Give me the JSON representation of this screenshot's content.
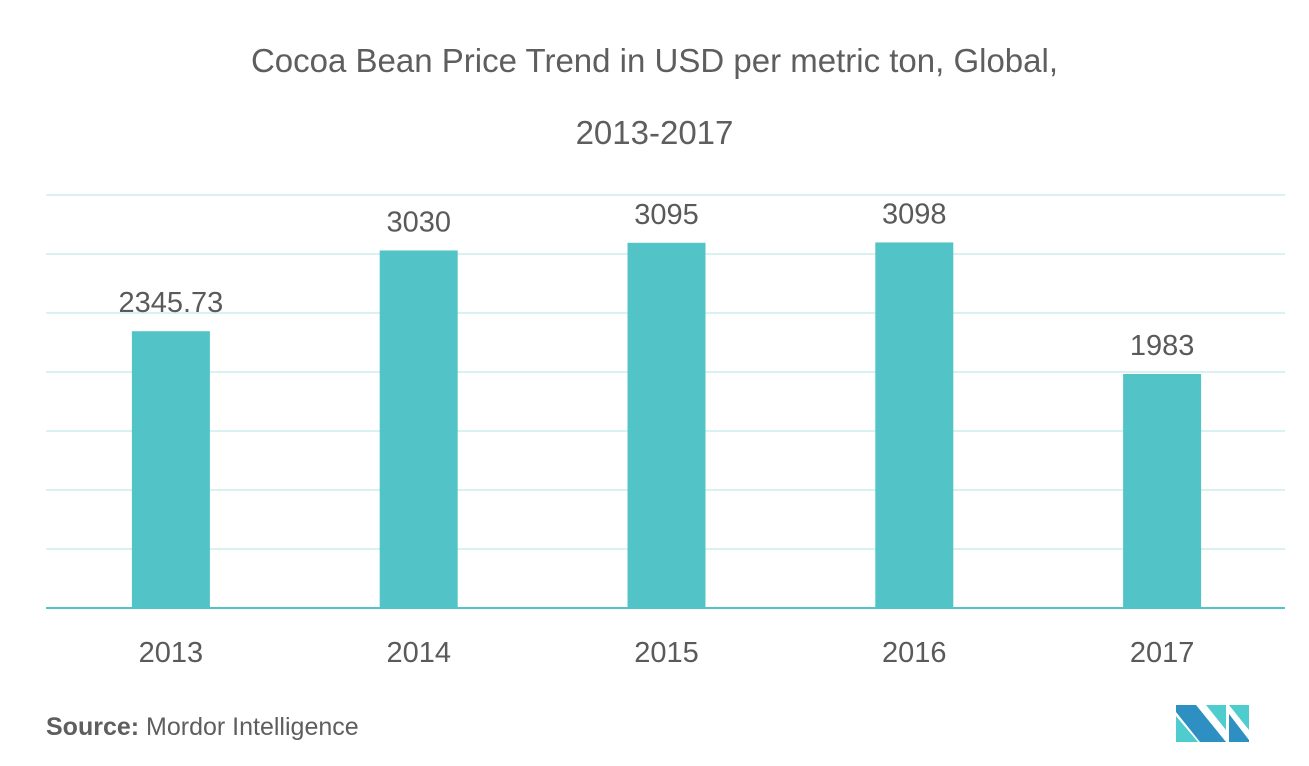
{
  "chart_data": {
    "type": "bar",
    "title_line1": "Cocoa Bean Price Trend in USD per metric ton, Global,",
    "title_line2": "2013-2017",
    "categories": [
      "2013",
      "2014",
      "2015",
      "2016",
      "2017"
    ],
    "values": [
      2345.73,
      3030,
      3095,
      3098,
      1983
    ],
    "data_labels": [
      "2345.73",
      "3030",
      "3095",
      "3098",
      "1983"
    ],
    "xlabel": "",
    "ylabel": "",
    "ylim": [
      0,
      3500
    ],
    "grid_step": 500,
    "grid": true,
    "legend": "none",
    "colors": {
      "bar": "#52c4c7",
      "grid": "#d9f1f1",
      "axis": "#52c4c7",
      "text": "#5a5a5a"
    }
  },
  "source": {
    "label": "Source:",
    "text": "Mordor Intelligence"
  },
  "logo": {
    "colors": {
      "dark": "#2e8fc2",
      "light": "#4fcccd"
    }
  }
}
